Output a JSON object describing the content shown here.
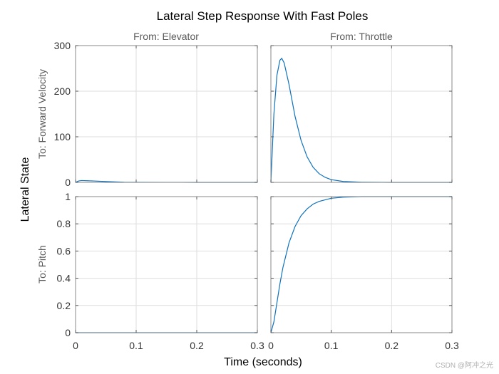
{
  "chart_data": {
    "type": "line",
    "title": "Lateral Step Response With Fast Poles",
    "xlabel": "Time (seconds)",
    "ylabel": "Lateral State",
    "columns": [
      "From: Elevator",
      "From: Throttle"
    ],
    "rows": [
      {
        "label": "To: Forward Velocity",
        "ylim": [
          0,
          300
        ],
        "yticks": [
          0,
          100,
          200,
          300
        ],
        "ytick_labels": [
          "0",
          "100",
          "200",
          "300"
        ]
      },
      {
        "label": "To: Pitch",
        "ylim": [
          0,
          1
        ],
        "yticks": [
          0,
          0.2,
          0.4,
          0.6,
          0.8,
          1
        ],
        "ytick_labels": [
          "0",
          "0.2",
          "0.4",
          "0.6",
          "0.8",
          "1"
        ]
      }
    ],
    "xlim": [
      0,
      0.3
    ],
    "xticks": [
      0,
      0.1,
      0.2,
      0.3
    ],
    "xtick_labels": [
      "0",
      "0.1",
      "0.2",
      "0.3"
    ],
    "grid": true,
    "series": [
      {
        "name": "Elevator to Forward Velocity",
        "row": 0,
        "col": 0,
        "x": [
          0,
          0.005,
          0.01,
          0.02,
          0.03,
          0.05,
          0.08,
          0.1,
          0.15,
          0.2,
          0.25,
          0.3
        ],
        "y": [
          0,
          3,
          4,
          3.5,
          3,
          1.8,
          0.5,
          0.3,
          0.1,
          0.05,
          0.02,
          0
        ]
      },
      {
        "name": "Throttle to Forward Velocity",
        "row": 0,
        "col": 1,
        "x": [
          0,
          0.005,
          0.01,
          0.015,
          0.018,
          0.022,
          0.03,
          0.04,
          0.05,
          0.06,
          0.07,
          0.08,
          0.09,
          0.1,
          0.12,
          0.15,
          0.2,
          0.25,
          0.3
        ],
        "y": [
          0,
          150,
          235,
          268,
          272,
          262,
          215,
          145,
          92,
          56,
          33,
          19,
          11,
          6,
          2,
          0.5,
          0,
          0,
          0
        ]
      },
      {
        "name": "Elevator to Pitch",
        "row": 1,
        "col": 0,
        "x": [
          0,
          0.1,
          0.2,
          0.3
        ],
        "y": [
          0,
          0,
          0,
          0
        ]
      },
      {
        "name": "Throttle to Pitch",
        "row": 1,
        "col": 1,
        "x": [
          0,
          0.005,
          0.01,
          0.015,
          0.02,
          0.03,
          0.04,
          0.05,
          0.06,
          0.07,
          0.08,
          0.1,
          0.12,
          0.15,
          0.2,
          0.25,
          0.3
        ],
        "y": [
          0,
          0.08,
          0.22,
          0.36,
          0.48,
          0.66,
          0.78,
          0.86,
          0.91,
          0.945,
          0.965,
          0.988,
          0.996,
          1,
          1,
          1,
          1
        ]
      }
    ],
    "reference_lines": [
      {
        "row": 0,
        "col": 0,
        "y": 0
      },
      {
        "row": 0,
        "col": 1,
        "y": 0
      },
      {
        "row": 1,
        "col": 0,
        "y": 0
      },
      {
        "row": 1,
        "col": 1,
        "y": 1
      }
    ]
  },
  "watermark": "CSDN @阿冲之光"
}
